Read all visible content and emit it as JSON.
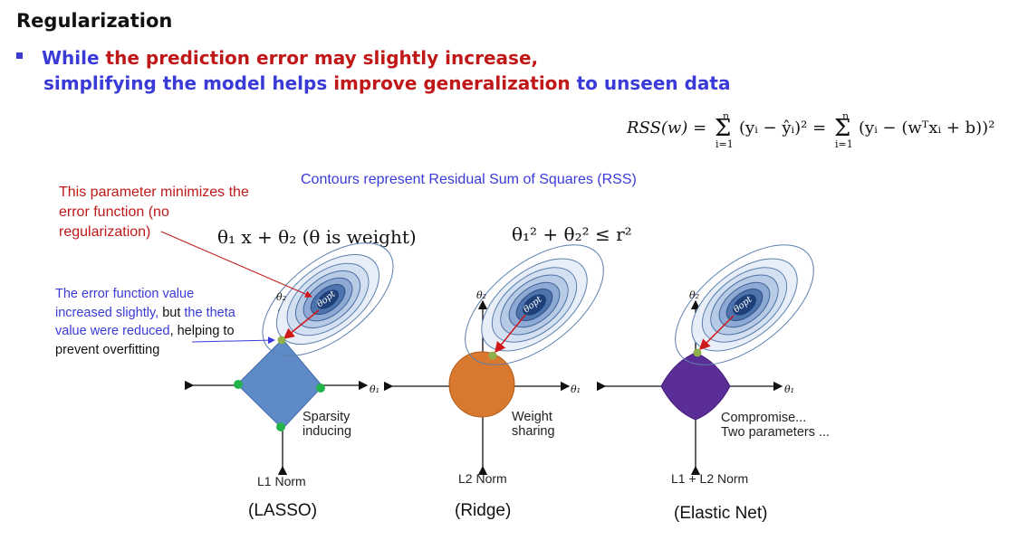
{
  "title": "Regularization",
  "bullet": {
    "line1_part1": "While ",
    "line1_part2": "the prediction error may slightly increase",
    "line1_part3": ",",
    "line2_part1": "simplifying the model helps ",
    "line2_part2": "improve generalization",
    "line2_part3": " to unseen data"
  },
  "formula": {
    "lhs": "RSS(w) =",
    "sum1": "Σ",
    "term1": "(yᵢ − ŷᵢ)² =",
    "sum2": "Σ",
    "term2": "(yᵢ − (wᵀxᵢ + b))²",
    "upper": "n",
    "lower": "i=1"
  },
  "contours_caption": "Contours represent Residual Sum of Squares (RSS)",
  "left_red_note": "This parameter minimizes the error function (no regularization)",
  "left_blue_note": {
    "part1": "The error function value increased slightly,",
    "part2": " but ",
    "part3": "the theta value were reduced",
    "part4": ", helping to prevent overfitting"
  },
  "equation_linear": "θ₁ x + θ₂ (θ is weight)",
  "equation_constraint": "θ₁² + θ₂² ≤ r²",
  "axis_labels": {
    "theta1": "θ₁",
    "theta2": "θ₂",
    "theta_opt": "θopt"
  },
  "panels": [
    {
      "shape_caption_1": "Sparsity",
      "shape_caption_2": "inducing",
      "norm": "L1 Norm",
      "name": "(LASSO)",
      "color": "#5e8bc8"
    },
    {
      "shape_caption_1": "Weight",
      "shape_caption_2": "sharing",
      "norm": "L2 Norm",
      "name": "(Ridge)",
      "color": "#d9782f"
    },
    {
      "shape_caption_1": "Compromise...",
      "shape_caption_2": "Two parameters ...",
      "norm": "L1 + L2 Norm",
      "name": "(Elastic Net)",
      "color": "#5a2e96"
    }
  ],
  "colors": {
    "blue_text": "#3a3ad8",
    "red_text": "#c01818",
    "contour_fill_outer": "#e6eef8",
    "contour_fill_inner": "#1e3f78",
    "green_point": "#8fb04a",
    "sparse_point": "#22b34b"
  }
}
